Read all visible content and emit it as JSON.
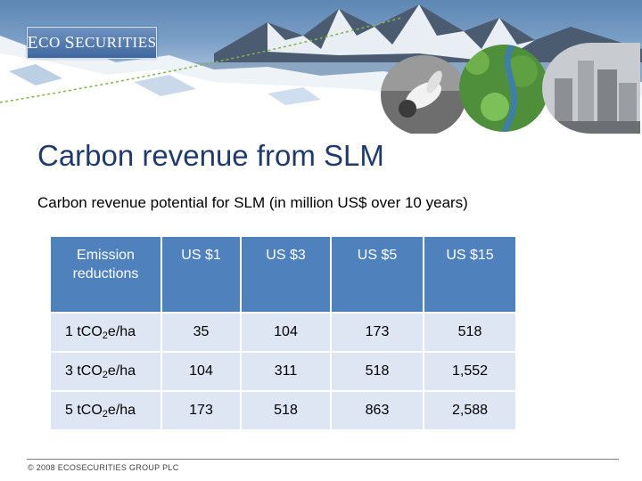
{
  "header": {
    "logo_first": "E",
    "logo_rest": "CO",
    "logo_second_first": "S",
    "logo_second_rest": "ECURITIES"
  },
  "slide": {
    "title": "Carbon revenue from SLM",
    "subtitle": "Carbon revenue potential for SLM (in million US$ over 10 years)"
  },
  "table": {
    "header_label": "Emission reductions",
    "columns": [
      "US $1",
      "US $3",
      "US $5",
      "US $15"
    ],
    "rows": [
      {
        "prefix": "1 tCO",
        "sub": "2",
        "suffix": "e/ha",
        "values": [
          "35",
          "104",
          "173",
          "518"
        ]
      },
      {
        "prefix": "3 tCO",
        "sub": "2",
        "suffix": "e/ha",
        "values": [
          "104",
          "311",
          "518",
          "1,552"
        ]
      },
      {
        "prefix": "5 tCO",
        "sub": "2",
        "suffix": "e/ha",
        "values": [
          "173",
          "518",
          "863",
          "2,588"
        ]
      }
    ]
  },
  "footer": {
    "copyright": "© 2008 ECOSECURITIES GROUP PLC"
  },
  "colors": {
    "title": "#203a6b",
    "table_header": "#4f81bd",
    "table_body": "#dfe6f3"
  },
  "icons": [
    "glacier-banner-image",
    "dove-photo-icon",
    "river-forest-photo-icon",
    "factory-photo-icon"
  ]
}
